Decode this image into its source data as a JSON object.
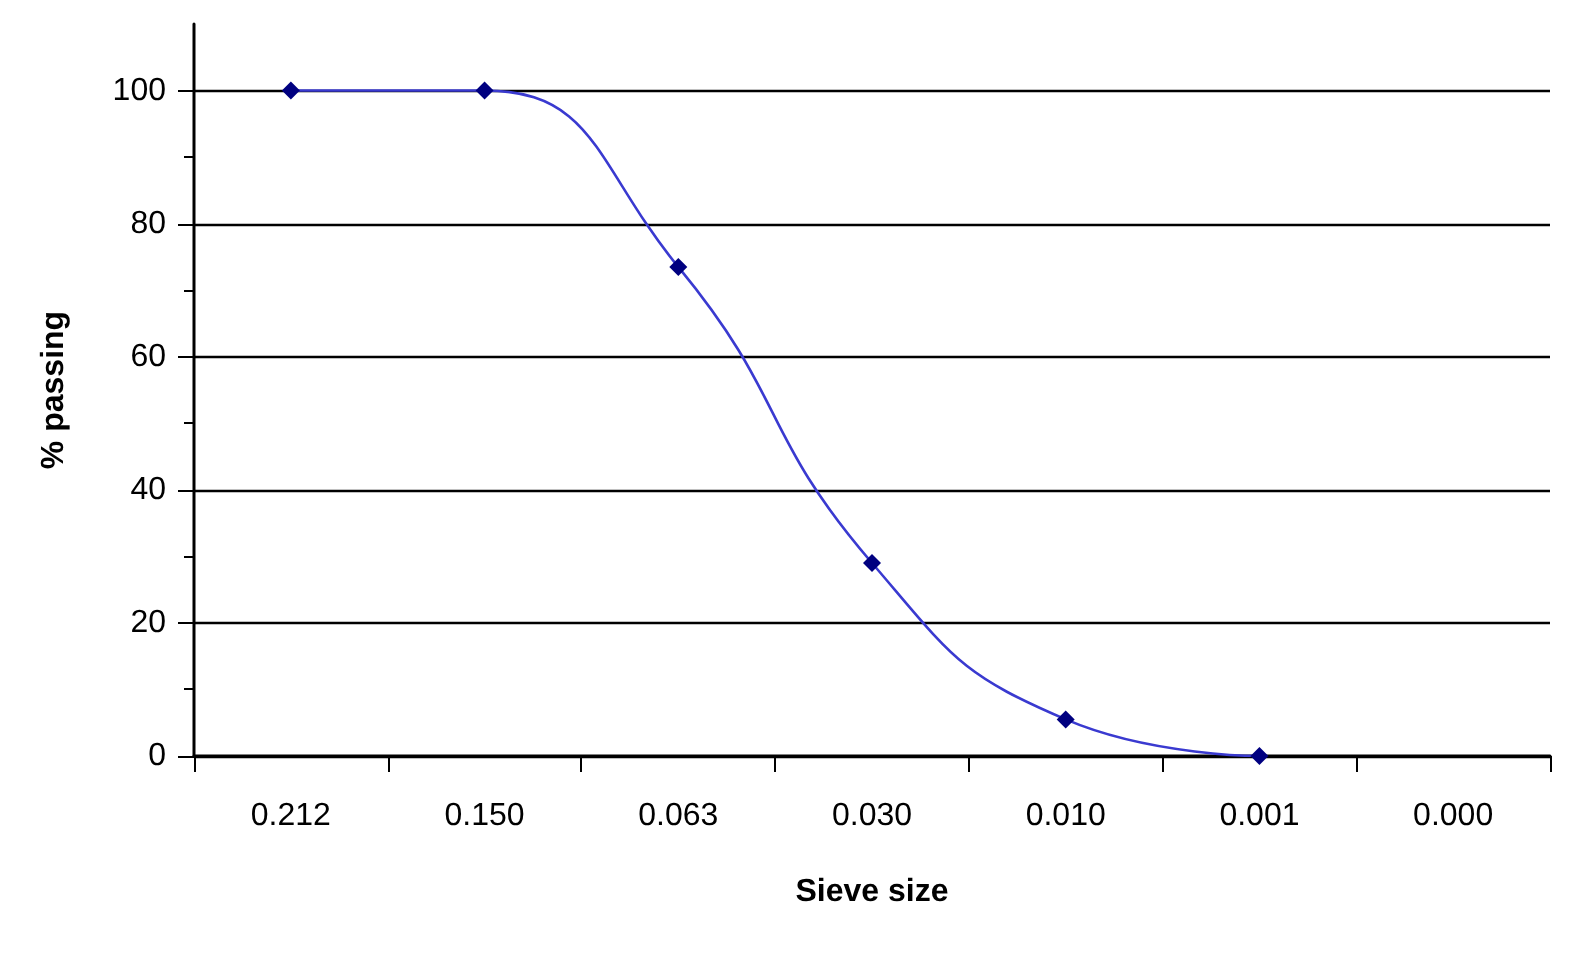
{
  "chart_data": {
    "type": "line",
    "xlabel": "Sieve size",
    "ylabel": "% passing",
    "categories": [
      "0.212",
      "0.150",
      "0.063",
      "0.030",
      "0.010",
      "0.001",
      "0.000"
    ],
    "series": [
      {
        "color": "#000080",
        "values": [
          100,
          100,
          73.5,
          29,
          5.5,
          0,
          null
        ]
      }
    ],
    "ylim": [
      0,
      110
    ],
    "yticks": [
      0,
      20,
      40,
      60,
      80,
      100
    ],
    "grid": "y",
    "marker": "diamond",
    "line_style": "solid"
  }
}
